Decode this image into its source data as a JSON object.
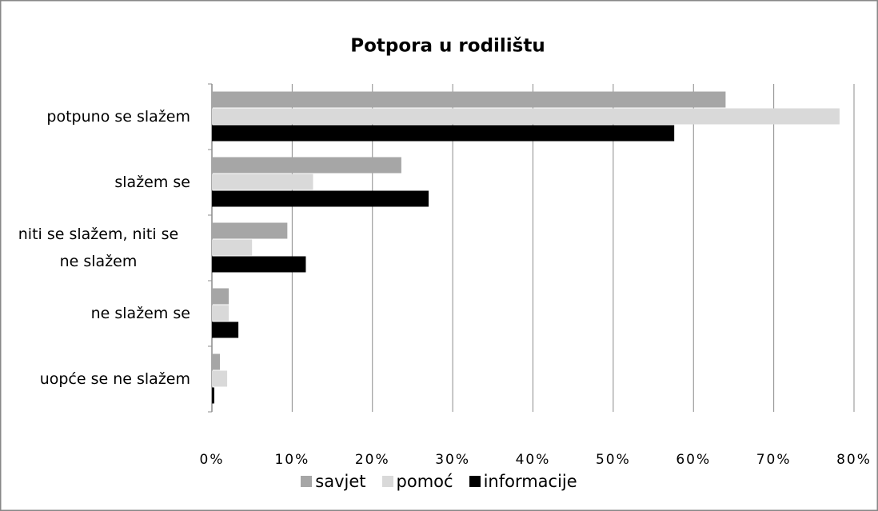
{
  "chart_data": {
    "type": "barh",
    "title": "Potpora u rodilištu",
    "categories": [
      "potpuno se slažem",
      "slažem se",
      "niti se slažem, niti se ne slažem",
      "ne slažem se",
      "uopće se ne slažem"
    ],
    "series": [
      {
        "name": "savjet",
        "color": "#a6a6a6",
        "values": [
          64,
          23.6,
          9.4,
          2.1,
          1
        ]
      },
      {
        "name": "pomoć",
        "color": "#d9d9d9",
        "values": [
          78.2,
          12.6,
          5,
          2.1,
          1.9
        ]
      },
      {
        "name": "informacije",
        "color": "#000000",
        "values": [
          57.6,
          27,
          11.7,
          3.3,
          0.3
        ]
      }
    ],
    "xlim": [
      0,
      80
    ],
    "xticks": [
      {
        "value": 0,
        "label": "0%"
      },
      {
        "value": 10,
        "label": "10%"
      },
      {
        "value": 20,
        "label": "20%"
      },
      {
        "value": 30,
        "label": "30%"
      },
      {
        "value": 40,
        "label": "40%"
      },
      {
        "value": 50,
        "label": "50%"
      },
      {
        "value": 60,
        "label": "60%"
      },
      {
        "value": 70,
        "label": "70%"
      },
      {
        "value": 80,
        "label": "80%"
      }
    ],
    "grid": true,
    "legend": "bottom"
  }
}
